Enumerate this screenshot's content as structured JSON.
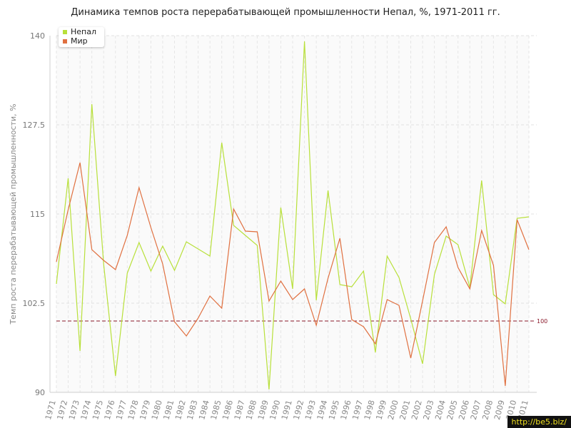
{
  "chart_data": {
    "type": "line",
    "title": "Динамика темпов роста перерабатывающей промышленности Непал, %, 1971-2011 гг.",
    "ylabel": "Темп роста перерабатывающей промышленности, %",
    "xlabel": "",
    "ylim": [
      90,
      140
    ],
    "yticks": [
      "90",
      "102.5",
      "115",
      "127.5",
      "140"
    ],
    "reference_line": {
      "value": 100,
      "label": "100",
      "color": "#8b1a2b"
    },
    "categories": [
      "1971",
      "1972",
      "1973",
      "1974",
      "1975",
      "1976",
      "1977",
      "1978",
      "1979",
      "1980",
      "1981",
      "1982",
      "1983",
      "1984",
      "1985",
      "1986",
      "1987",
      "1988",
      "1989",
      "1990",
      "1991",
      "1992",
      "1993",
      "1994",
      "1995",
      "1996",
      "1997",
      "1998",
      "1999",
      "2000",
      "2001",
      "2002",
      "2003",
      "2004",
      "2005",
      "2006",
      "2007",
      "2008",
      "2009",
      "2010",
      "2011"
    ],
    "series": [
      {
        "name": "Непал",
        "color": "#b8e03a",
        "values": [
          105.2,
          120.0,
          95.8,
          130.4,
          108.0,
          92.3,
          106.7,
          111.0,
          107.0,
          110.5,
          107.1,
          111.1,
          110.1,
          109.1,
          125.0,
          113.4,
          112.0,
          110.6,
          90.4,
          115.9,
          104.5,
          139.2,
          102.9,
          118.3,
          105.1,
          104.8,
          107.0,
          95.6,
          109.1,
          106.1,
          100.3,
          94.0,
          106.5,
          111.9,
          110.7,
          104.7,
          119.7,
          103.7,
          102.4,
          114.4,
          114.6
        ]
      },
      {
        "name": "Мир",
        "color": "#e07040",
        "values": [
          108.3,
          115.6,
          122.2,
          110.0,
          108.5,
          107.2,
          112.0,
          118.7,
          113.1,
          108.0,
          99.9,
          97.9,
          100.4,
          103.5,
          101.8,
          115.7,
          112.6,
          112.5,
          102.8,
          105.6,
          103.0,
          104.5,
          99.4,
          106.0,
          111.6,
          100.2,
          99.2,
          96.8,
          103.0,
          102.2,
          94.8,
          102.8,
          111.0,
          113.2,
          107.5,
          104.5,
          112.7,
          107.8,
          90.9,
          114.2,
          110.0
        ]
      }
    ],
    "legend": "top-left",
    "grid": true
  },
  "watermark": "http://be5.biz/"
}
